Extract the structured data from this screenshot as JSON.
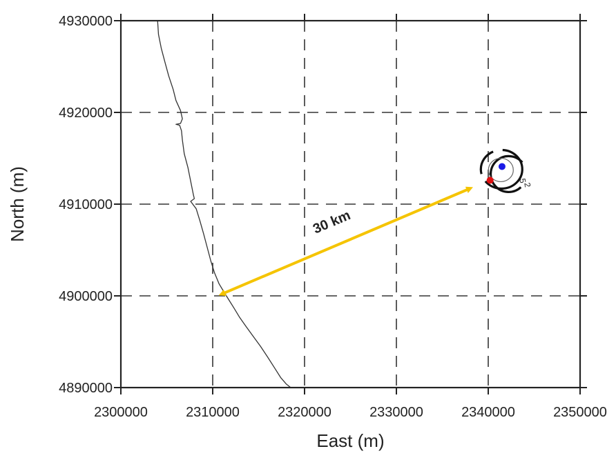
{
  "chart_data": {
    "type": "scatter",
    "title": "",
    "xlabel": "East (m)",
    "ylabel": "North (m)",
    "xlim": [
      2300000,
      2350000
    ],
    "ylim": [
      4890000,
      4930000
    ],
    "x_ticks": [
      2300000,
      2310000,
      2320000,
      2330000,
      2340000,
      2350000
    ],
    "y_ticks": [
      4890000,
      4900000,
      4910000,
      4920000,
      4930000
    ],
    "x_tick_labels": [
      "2300000",
      "2310000",
      "2320000",
      "2330000",
      "2340000",
      "2350000"
    ],
    "y_tick_labels": [
      "4890000",
      "4900000",
      "4910000",
      "4920000",
      "4930000"
    ],
    "grid": true,
    "grid_style": "dashed",
    "coastline": {
      "x": [
        2304000,
        2304100,
        2304400,
        2304800,
        2305200,
        2305700,
        2306000,
        2306500,
        2306700,
        2306500,
        2306000,
        2306400,
        2306600,
        2306700,
        2306900,
        2307300,
        2307600,
        2307900,
        2308000,
        2307600,
        2308200,
        2308600,
        2309000,
        2309400,
        2309800,
        2310200,
        2310700,
        2311300,
        2311800,
        2312300,
        2312900,
        2313600,
        2314400,
        2315200,
        2316000,
        2316700,
        2317400,
        2318000,
        2318500
      ],
      "y": [
        4930000,
        4928500,
        4927000,
        4925500,
        4924000,
        4922500,
        4921300,
        4920200,
        4919300,
        4918800,
        4918700,
        4918600,
        4918000,
        4917000,
        4915500,
        4914000,
        4912500,
        4911000,
        4910600,
        4910300,
        4909500,
        4908200,
        4906800,
        4905300,
        4903800,
        4902500,
        4901300,
        4900300,
        4899500,
        4898700,
        4897700,
        4896700,
        4895600,
        4894500,
        4893300,
        4892200,
        4891100,
        4890400,
        4890000
      ]
    },
    "points": [
      {
        "x": 2341500,
        "y": 4914100,
        "color": "#1a1ae6"
      },
      {
        "x": 2340200,
        "y": 4912600,
        "color": "#e01010"
      }
    ],
    "contour_labels": [
      "5",
      "2"
    ],
    "annotation": {
      "text": "30 km",
      "from": [
        2311000,
        4900200
      ],
      "to": [
        2338000,
        4911700
      ],
      "color": "#f5c400"
    }
  }
}
